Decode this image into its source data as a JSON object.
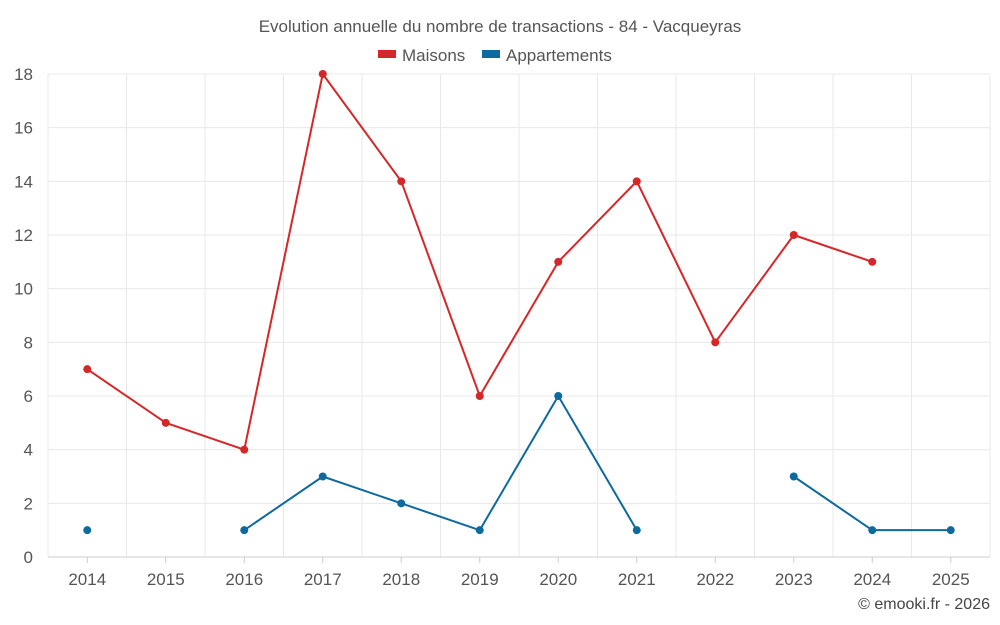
{
  "chart_data": {
    "type": "line",
    "title": "Evolution annuelle du nombre de transactions - 84 - Vacqueyras",
    "categories": [
      "2014",
      "2015",
      "2016",
      "2017",
      "2018",
      "2019",
      "2020",
      "2021",
      "2022",
      "2023",
      "2024",
      "2025"
    ],
    "ylim": [
      0,
      18
    ],
    "yticks": [
      0,
      2,
      4,
      6,
      8,
      10,
      12,
      14,
      16,
      18
    ],
    "grid": true,
    "legend_position": "top-center",
    "series": [
      {
        "name": "Maisons",
        "color": "#d62728",
        "values": [
          7,
          5,
          4,
          18,
          14,
          6,
          11,
          14,
          8,
          12,
          11,
          null
        ]
      },
      {
        "name": "Appartements",
        "color": "#0e6a9e",
        "values": [
          1,
          null,
          1,
          3,
          2,
          1,
          6,
          1,
          null,
          3,
          1,
          1
        ]
      }
    ]
  },
  "credit": "© emooki.fr - 2026"
}
